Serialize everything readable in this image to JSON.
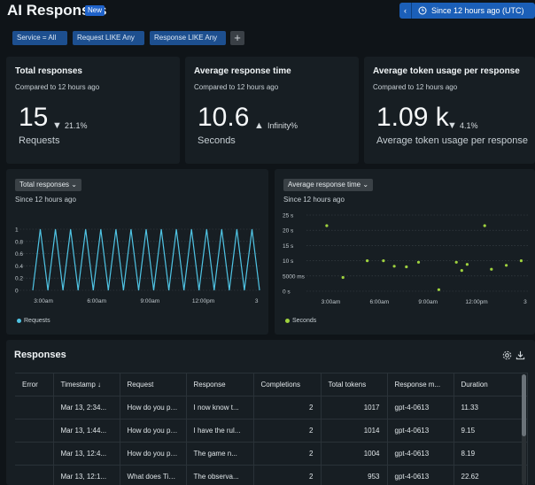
{
  "header": {
    "title": "AI Responses",
    "badge": "New",
    "time_picker": {
      "chevron": "‹",
      "label": "Since 12 hours ago (UTC)",
      "caret": "⌄"
    }
  },
  "filters": [
    {
      "label": "Service  =  All"
    },
    {
      "label": "Request  LIKE  Any"
    },
    {
      "label": "Response  LIKE  Any"
    }
  ],
  "add_filter_label": "+",
  "stats": [
    {
      "title": "Total responses",
      "subtitle": "Compared to 12 hours ago",
      "value": "15",
      "arrow": "▼",
      "delta": "21.1%",
      "unit": "Requests"
    },
    {
      "title": "Average response time",
      "subtitle": "Compared to 12 hours ago",
      "value": "10.6",
      "arrow": "▲",
      "delta": "Infinity%",
      "unit": "Seconds"
    },
    {
      "title": "Average token usage per response",
      "subtitle": "Compared to 12 hours ago",
      "value": "1.09 k",
      "arrow": "▼",
      "delta": "4.1%",
      "unit": "Average token usage per response"
    }
  ],
  "chart_data": [
    {
      "type": "line",
      "select_label": "Total responses ⌄",
      "subtitle": "Since 12 hours ago",
      "yticks": [
        "1",
        "0.8",
        "0.6",
        "0.4",
        "0.2",
        "0"
      ],
      "ylim": [
        0,
        1
      ],
      "xticks": [
        "3:00am",
        "6:00am",
        "9:00am",
        "12:00pm",
        "3"
      ],
      "series": [
        {
          "name": "Requests",
          "color": "#4fc3e3",
          "values": [
            0,
            1,
            0,
            1,
            0,
            1,
            0,
            1,
            0,
            1,
            0,
            1,
            0,
            1,
            0,
            1,
            0,
            1,
            0,
            1,
            0,
            1,
            0,
            1,
            0,
            1,
            0,
            1,
            0,
            1,
            0
          ]
        }
      ],
      "grid": true,
      "legend": "bottom-left"
    },
    {
      "type": "scatter",
      "select_label": "Average response time ⌄",
      "subtitle": "Since 12 hours ago",
      "yticks": [
        "25 s",
        "20 s",
        "15 s",
        "10 s",
        "5000 ms",
        "0 s"
      ],
      "ylim": [
        0,
        25
      ],
      "xticks": [
        "3:00am",
        "6:00am",
        "9:00am",
        "12:00pm",
        "3"
      ],
      "series": [
        {
          "name": "Seconds",
          "color": "#9fd23e",
          "points": [
            {
              "x": "2:45am",
              "y": 21.5
            },
            {
              "x": "3:45am",
              "y": 4.5
            },
            {
              "x": "5:15am",
              "y": 10
            },
            {
              "x": "6:15am",
              "y": 10
            },
            {
              "x": "6:55am",
              "y": 8.2
            },
            {
              "x": "7:40am",
              "y": 8.0
            },
            {
              "x": "8:25am",
              "y": 9.5
            },
            {
              "x": "9:40am",
              "y": 0.5
            },
            {
              "x": "10:45am",
              "y": 9.5
            },
            {
              "x": "11:05am",
              "y": 6.8
            },
            {
              "x": "11:25am",
              "y": 8.8
            },
            {
              "x": "12:30pm",
              "y": 21.5
            },
            {
              "x": "12:55pm",
              "y": 7.2
            },
            {
              "x": "1:50pm",
              "y": 8.5
            },
            {
              "x": "2:45pm",
              "y": 10
            }
          ]
        }
      ],
      "grid": true,
      "legend": "bottom-left"
    }
  ],
  "responses": {
    "title": "Responses",
    "settings_icon": "gear-icon",
    "download_icon": "download-icon",
    "columns": [
      "Error",
      "Timestamp ↓",
      "Request",
      "Response",
      "Completions",
      "Total tokens",
      "Response m...",
      "Duration"
    ],
    "rows": [
      [
        "",
        "Mar 13, 2:34...",
        "How do you play :",
        "I now know t...",
        "2",
        "1017",
        "gpt-4-0613",
        "11.33"
      ],
      [
        "",
        "Mar 13, 1:44...",
        "How do you play i",
        "I have the rul...",
        "2",
        "1014",
        "gpt-4-0613",
        "9.15"
      ],
      [
        "",
        "Mar 13, 12:4...",
        "How do you play i",
        "The game n...",
        "2",
        "1004",
        "gpt-4-0613",
        "8.19"
      ],
      [
        "",
        "Mar 13, 12:1...",
        "What does Tic Tac",
        "The observa...",
        "2",
        "953",
        "gpt-4-0613",
        "22.62"
      ]
    ]
  }
}
